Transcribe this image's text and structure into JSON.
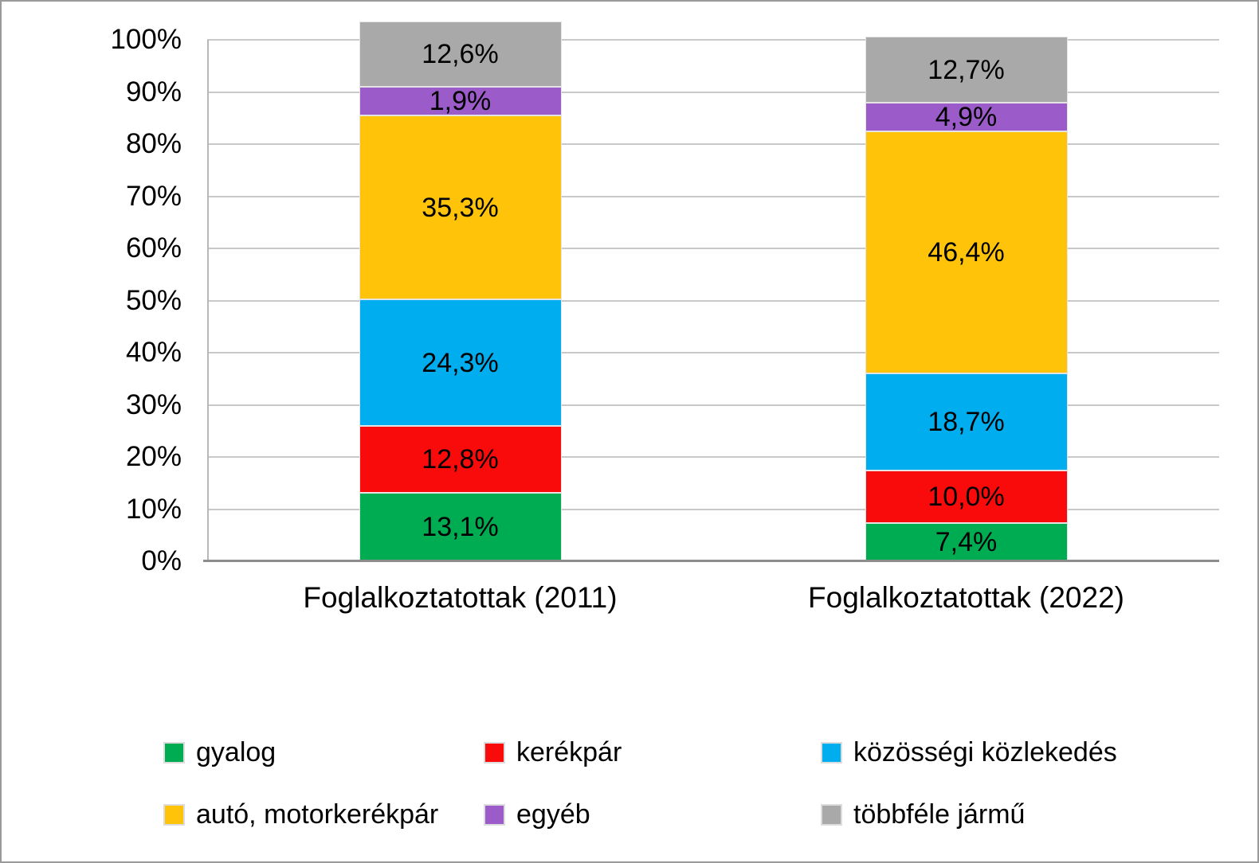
{
  "chart_data": {
    "type": "bar",
    "subtype": "stacked-100-percent",
    "title": "",
    "xlabel": "",
    "ylabel": "",
    "categories": [
      "Foglalkoztatottak (2011)",
      "Foglalkoztatottak (2022)"
    ],
    "series": [
      {
        "name": "gyalog",
        "color": "#00ac52",
        "values": [
          13.1,
          7.4
        ],
        "labels": [
          "13,1%",
          "7,4%"
        ]
      },
      {
        "name": "kerékpár",
        "color": "#f90b0b",
        "values": [
          12.8,
          10.0
        ],
        "labels": [
          "12,8%",
          "10,0%"
        ]
      },
      {
        "name": "közösségi közlekedés",
        "color": "#00aeef",
        "values": [
          24.3,
          18.7
        ],
        "labels": [
          "24,3%",
          "18,7%"
        ]
      },
      {
        "name": "autó, motorkerékpár",
        "color": "#ffc40a",
        "values": [
          35.3,
          46.4
        ],
        "labels": [
          "35,3%",
          "46,4%"
        ]
      },
      {
        "name": "egyéb",
        "color": "#9b5bc8",
        "values": [
          1.9,
          4.9
        ],
        "labels": [
          "1,9%",
          "4,9%"
        ]
      },
      {
        "name": "többféle jármű",
        "color": "#a9a9a9",
        "values": [
          12.6,
          12.7
        ],
        "labels": [
          "12,6%",
          "12,7%"
        ]
      }
    ],
    "y_axis": {
      "min": 0,
      "max": 100,
      "step": 10,
      "tick_labels": [
        "0%",
        "10%",
        "20%",
        "30%",
        "40%",
        "50%",
        "60%",
        "70%",
        "80%",
        "90%",
        "100%"
      ]
    },
    "grid": true,
    "legend_position": "bottom",
    "colors": {
      "gridline": "#c9c9c9",
      "axis_line": "#8c8c8c",
      "frame_border": "#9a9a9a",
      "label_text": "#000000"
    }
  }
}
